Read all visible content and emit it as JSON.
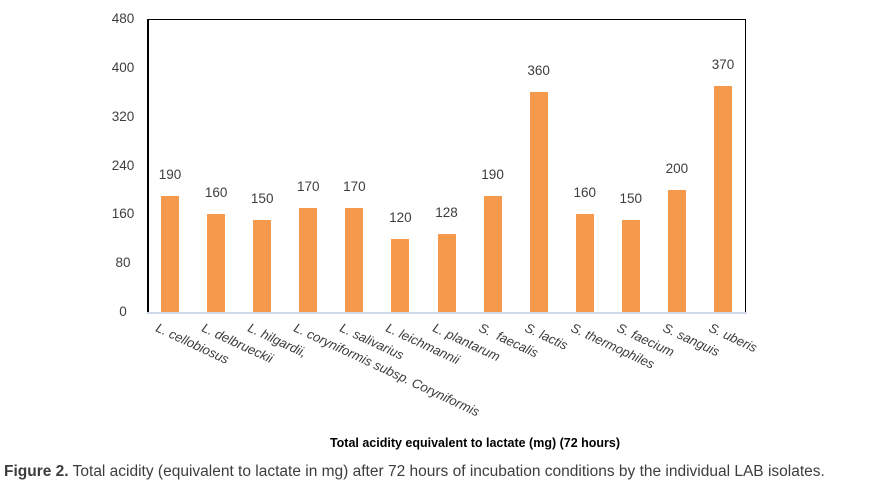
{
  "figure": {
    "caption_prefix": "Figure 2.",
    "caption_text": " Total acidity (equivalent to lactate in mg) after 72 hours of incubation conditions by the individual LAB isolates."
  },
  "chart_data": {
    "type": "bar",
    "title": "Total acidity equivalent to lactate (mg) (72 hours)",
    "title_position": "below-category-labels",
    "categories": [
      "L. cellobiosus",
      "L. delbrueckii",
      "L. hilgardii,",
      "L. coryniformis subsp. Coryniformis",
      "L. salivarius",
      "L. leichmannii",
      "L. plantarum",
      "S.  faecalis",
      "S. lactis",
      "S. thermophiles",
      "S. faecium",
      "S. sanguis",
      "S. uberis"
    ],
    "values": [
      190,
      160,
      150,
      170,
      170,
      120,
      128,
      190,
      360,
      160,
      150,
      200,
      370
    ],
    "xlabel": "",
    "ylabel": "",
    "ylim": [
      0,
      480
    ],
    "yticks": [
      0,
      80,
      160,
      240,
      320,
      400,
      480
    ],
    "grid": false,
    "legend": "none",
    "data_labels": true,
    "bar_color": "#F5994D",
    "axis_border_color": "#000000",
    "baseline_color": "#cfd8e8",
    "label_color": "#3d3d3d",
    "category_labels_italic": true,
    "category_label_angle_deg": 25
  }
}
